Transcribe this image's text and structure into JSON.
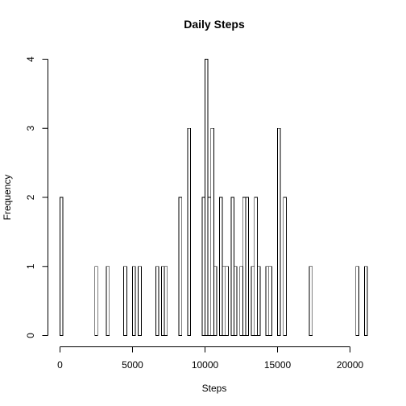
{
  "chart_data": {
    "type": "bar",
    "title": "Daily Steps",
    "xlabel": "Steps",
    "ylabel": "Frequency",
    "xlim": [
      0,
      21200
    ],
    "ylim": [
      0,
      4
    ],
    "bin_width": 200,
    "x_ticks": [
      0,
      5000,
      10000,
      15000,
      20000
    ],
    "y_ticks": [
      0,
      1,
      2,
      3,
      4
    ],
    "bins": [
      {
        "x": 0,
        "count": 2
      },
      {
        "x": 2400,
        "count": 1
      },
      {
        "x": 3200,
        "count": 1
      },
      {
        "x": 4400,
        "count": 1
      },
      {
        "x": 5000,
        "count": 1
      },
      {
        "x": 5400,
        "count": 1
      },
      {
        "x": 6600,
        "count": 1
      },
      {
        "x": 7000,
        "count": 1
      },
      {
        "x": 7200,
        "count": 1
      },
      {
        "x": 8200,
        "count": 2
      },
      {
        "x": 8800,
        "count": 3
      },
      {
        "x": 9800,
        "count": 2
      },
      {
        "x": 10000,
        "count": 4
      },
      {
        "x": 10200,
        "count": 2
      },
      {
        "x": 10400,
        "count": 3
      },
      {
        "x": 10600,
        "count": 1
      },
      {
        "x": 11000,
        "count": 2
      },
      {
        "x": 11200,
        "count": 1
      },
      {
        "x": 11400,
        "count": 1
      },
      {
        "x": 11800,
        "count": 2
      },
      {
        "x": 12000,
        "count": 1
      },
      {
        "x": 12400,
        "count": 1
      },
      {
        "x": 12600,
        "count": 2
      },
      {
        "x": 12800,
        "count": 2
      },
      {
        "x": 13200,
        "count": 1
      },
      {
        "x": 13400,
        "count": 2
      },
      {
        "x": 13600,
        "count": 1
      },
      {
        "x": 14200,
        "count": 1
      },
      {
        "x": 14400,
        "count": 1
      },
      {
        "x": 15000,
        "count": 3
      },
      {
        "x": 15400,
        "count": 2
      },
      {
        "x": 17200,
        "count": 1
      },
      {
        "x": 20400,
        "count": 1
      },
      {
        "x": 21000,
        "count": 1
      }
    ]
  }
}
